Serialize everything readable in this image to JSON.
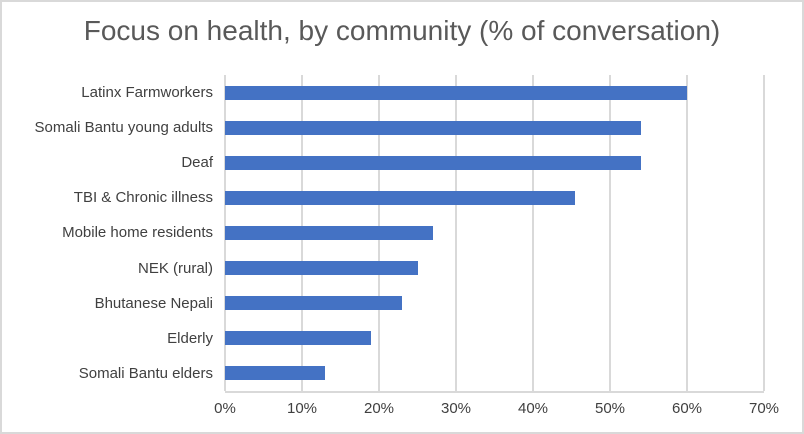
{
  "chart_data": {
    "type": "bar",
    "orientation": "horizontal",
    "title": "Focus on health, by community (% of conversation)",
    "categories": [
      "Latinx Farmworkers",
      "Somali Bantu young adults",
      "Deaf",
      "TBI & Chronic illness",
      "Mobile home residents",
      "NEK (rural)",
      "Bhutanese Nepali",
      "Elderly",
      "Somali Bantu elders"
    ],
    "values": [
      60,
      54,
      54,
      45.5,
      27,
      25,
      23,
      19,
      13
    ],
    "xlabel": "",
    "ylabel": "",
    "xlim": [
      0,
      70
    ],
    "x_ticks": [
      "0%",
      "10%",
      "20%",
      "30%",
      "40%",
      "50%",
      "60%",
      "70%"
    ],
    "grid": "vertical-on",
    "legend": "none",
    "colors": {
      "bar": "#4472C4",
      "gridline": "#D9D9D9",
      "axis_line": "#D9D9D9",
      "title_text": "#595959",
      "label_text": "#404040",
      "background": "#FFFFFF",
      "border": "#D9D9D9"
    }
  }
}
